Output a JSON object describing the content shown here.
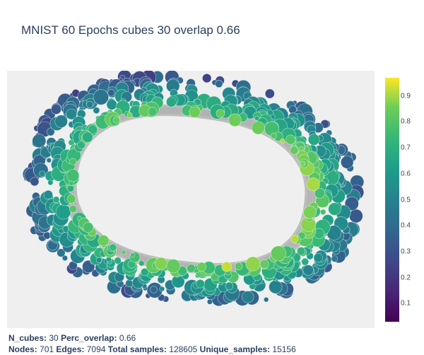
{
  "chart_data": {
    "type": "scatter",
    "title": "MNIST 60 Epochs cubes 30 overlap 0.66",
    "background": "#efefef",
    "edge_color": "#b0b0b0",
    "colorscale": "Viridis",
    "colorbar": {
      "range": [
        0.03,
        0.97
      ],
      "ticks": [
        "0.1",
        "0.2",
        "0.3",
        "0.4",
        "0.5",
        "0.6",
        "0.7",
        "0.8",
        "0.9"
      ]
    },
    "layout": "ring",
    "node_count_drawn": 701
  },
  "footer": {
    "line1": [
      {
        "label": "N_cubes:",
        "value": "30"
      },
      {
        "label": "Perc_overlap:",
        "value": "0.66"
      }
    ],
    "line2": [
      {
        "label": "Nodes:",
        "value": "701"
      },
      {
        "label": "Edges:",
        "value": "7094"
      },
      {
        "label": "Total samples:",
        "value": "128605"
      },
      {
        "label": "Unique_samples:",
        "value": "15156"
      }
    ]
  }
}
